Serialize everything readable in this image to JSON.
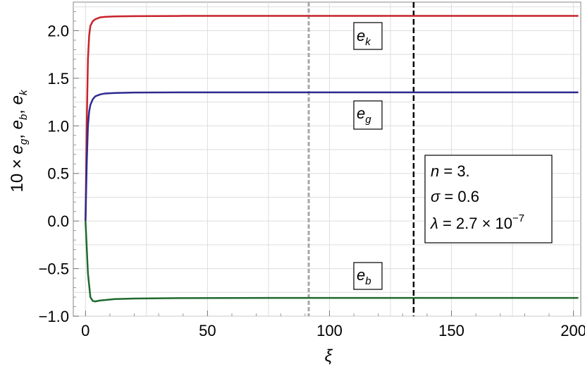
{
  "chart_data": {
    "type": "line",
    "xlabel": "ξ",
    "ylabel": "10 × e_g, e_b, e_k",
    "xlim": [
      -5,
      203
    ],
    "ylim": [
      -1.0,
      2.3
    ],
    "x_ticks": [
      0,
      50,
      100,
      150,
      200
    ],
    "y_ticks": [
      -1.0,
      -0.5,
      0.0,
      0.5,
      1.0,
      1.5,
      2.0
    ],
    "x_tick_labels": [
      "0",
      "50",
      "100",
      "150",
      "200"
    ],
    "y_tick_labels": [
      "−1.0",
      "−0.5",
      "0.0",
      "0.5",
      "1.0",
      "1.5",
      "2.0"
    ],
    "grid": true,
    "series": [
      {
        "name": "e_k",
        "label_main": "e",
        "label_sub": "k",
        "color": "#c8222a",
        "x": [
          0,
          0.5,
          1,
          1.5,
          2,
          3,
          4,
          6,
          8,
          12,
          20,
          40,
          80,
          202
        ],
        "y": [
          0.0,
          1.0,
          1.7,
          1.95,
          2.05,
          2.1,
          2.12,
          2.14,
          2.145,
          2.15,
          2.153,
          2.155,
          2.155,
          2.155
        ]
      },
      {
        "name": "e_g",
        "label_main": "e",
        "label_sub": "g",
        "color": "#2e2a8e",
        "x": [
          0,
          0.5,
          1,
          1.5,
          2,
          3,
          4,
          6,
          8,
          12,
          20,
          40,
          80,
          202
        ],
        "y": [
          0.0,
          0.6,
          1.0,
          1.15,
          1.22,
          1.28,
          1.31,
          1.33,
          1.34,
          1.345,
          1.35,
          1.352,
          1.352,
          1.352
        ]
      },
      {
        "name": "e_b",
        "label_main": "e",
        "label_sub": "b",
        "color": "#1f6b2e",
        "x": [
          0,
          1,
          2,
          3,
          4,
          6,
          8,
          12,
          20,
          40,
          80,
          202
        ],
        "y": [
          0.0,
          -0.55,
          -0.8,
          -0.84,
          -0.845,
          -0.835,
          -0.83,
          -0.82,
          -0.815,
          -0.81,
          -0.808,
          -0.808
        ]
      }
    ],
    "vlines": [
      {
        "x": 91.5,
        "color": "#a8a8a8",
        "style": "dashed"
      },
      {
        "x": 134.5,
        "color": "#000000",
        "style": "dashed"
      }
    ],
    "param_box": {
      "n_sym": "n",
      "n_val": " = 3.",
      "sigma_sym": "σ",
      "sigma_val": " = 0.6",
      "lambda_sym": "λ",
      "lambda_val": " = 2.7 × 10",
      "lambda_exp": "−7"
    }
  }
}
